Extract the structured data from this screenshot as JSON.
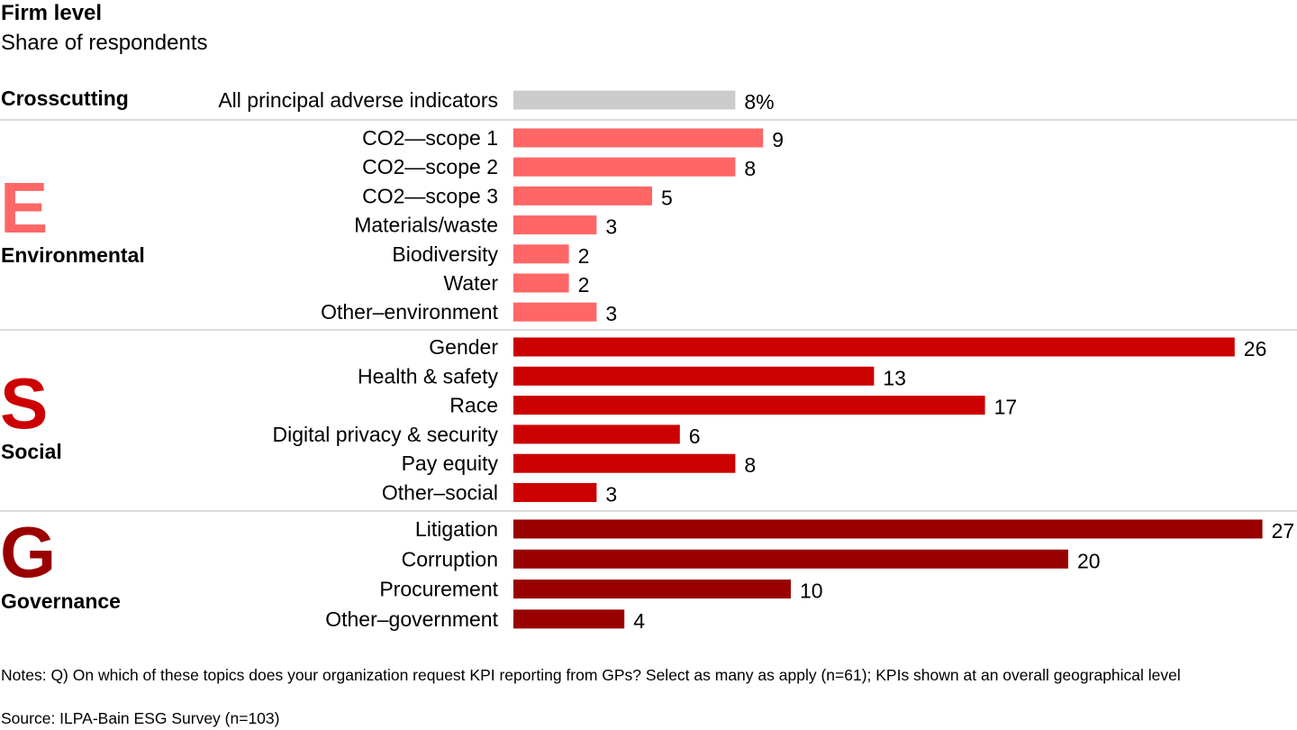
{
  "title": "Firm level",
  "subtitle": "Share of respondents",
  "notes": "Notes: Q) On which of these topics does your organization request KPI reporting from GPs? Select as many as apply (n=61); KPIs shown at an overall geographical level",
  "source": "Source: ILPA-Bain ESG Survey (n=103)",
  "chart_data": {
    "type": "bar",
    "orientation": "horizontal",
    "unit": "%",
    "groups": [
      {
        "name": "Crosscutting",
        "letter": "",
        "color": "#cccccc",
        "items": [
          {
            "label": "All principal adverse indicators",
            "value": 8,
            "value_label": "8%"
          }
        ]
      },
      {
        "name": "Environmental",
        "letter": "E",
        "color": "#ff6666",
        "items": [
          {
            "label": "CO2—scope 1",
            "value": 9,
            "value_label": "9"
          },
          {
            "label": "CO2—scope 2",
            "value": 8,
            "value_label": "8"
          },
          {
            "label": "CO2—scope 3",
            "value": 5,
            "value_label": "5"
          },
          {
            "label": "Materials/waste",
            "value": 3,
            "value_label": "3"
          },
          {
            "label": "Biodiversity",
            "value": 2,
            "value_label": "2"
          },
          {
            "label": "Water",
            "value": 2,
            "value_label": "2"
          },
          {
            "label": "Other–environment",
            "value": 3,
            "value_label": "3"
          }
        ]
      },
      {
        "name": "Social",
        "letter": "S",
        "color": "#cc0000",
        "items": [
          {
            "label": "Gender",
            "value": 26,
            "value_label": "26"
          },
          {
            "label": "Health & safety",
            "value": 13,
            "value_label": "13"
          },
          {
            "label": "Race",
            "value": 17,
            "value_label": "17"
          },
          {
            "label": "Digital privacy & security",
            "value": 6,
            "value_label": "6"
          },
          {
            "label": "Pay equity",
            "value": 8,
            "value_label": "8"
          },
          {
            "label": "Other–social",
            "value": 3,
            "value_label": "3"
          }
        ]
      },
      {
        "name": "Governance",
        "letter": "G",
        "color": "#990000",
        "items": [
          {
            "label": "Litigation",
            "value": 27,
            "value_label": "27"
          },
          {
            "label": "Corruption",
            "value": 20,
            "value_label": "20"
          },
          {
            "label": "Procurement",
            "value": 10,
            "value_label": "10"
          },
          {
            "label": "Other–government",
            "value": 4,
            "value_label": "4"
          }
        ]
      }
    ],
    "separator_color": "#c8c8c8",
    "grid": false,
    "legend": "none"
  }
}
